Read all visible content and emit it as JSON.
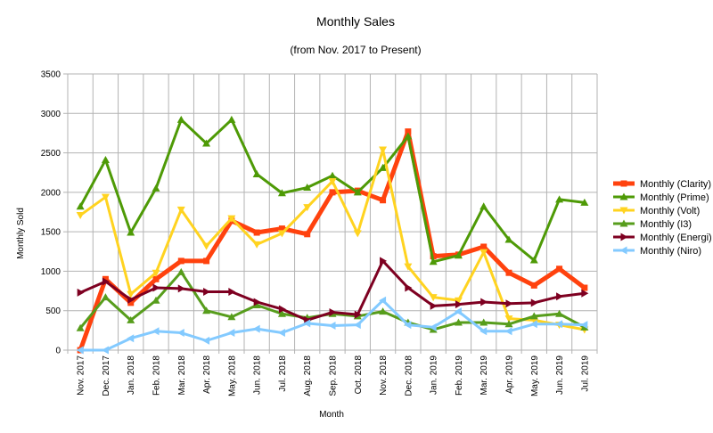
{
  "chart_data": {
    "type": "line",
    "title": "Monthly Sales",
    "subtitle": "(from Nov. 2017 to Present)",
    "xlabel": "Month",
    "ylabel": "Monthly Sold",
    "ylim": [
      0,
      3500
    ],
    "yticks": [
      0,
      500,
      1000,
      1500,
      2000,
      2500,
      3000,
      3500
    ],
    "grid": "horizontal",
    "legend_position": "right",
    "categories": [
      "Nov. 2017",
      "Dec. 2017",
      "Jan. 2018",
      "Feb. 2018",
      "Mar. 2018",
      "Apr. 2018",
      "May. 2018",
      "Jun. 2018",
      "Jul. 2018",
      "Aug. 2018",
      "Sep. 2018",
      "Oct. 2018",
      "Nov. 2018",
      "Dec. 2018",
      "Jan. 2019",
      "Feb. 2019",
      "Mar. 2019",
      "Apr. 2019",
      "May. 2019",
      "Jun. 2019",
      "Jul. 2019"
    ],
    "series": [
      {
        "name": "Monthly (Clarity)",
        "color": "#ff420e",
        "marker": "square",
        "width": "thick",
        "values": [
          0,
          900,
          600,
          900,
          1130,
          1130,
          1640,
          1490,
          1540,
          1470,
          2000,
          2020,
          1900,
          2770,
          1190,
          1210,
          1310,
          980,
          820,
          1030,
          790
        ]
      },
      {
        "name": "Monthly (Prime)",
        "color": "#4e9a06",
        "marker": "triangle",
        "width": "normal",
        "values": [
          1820,
          2410,
          1490,
          2050,
          2920,
          2620,
          2920,
          2230,
          1990,
          2060,
          2210,
          2000,
          2310,
          2710,
          1120,
          1200,
          1820,
          1400,
          1140,
          1910,
          1870
        ]
      },
      {
        "name": "Monthly (Volt)",
        "color": "#ffd320",
        "marker": "triangle-down",
        "width": "normal",
        "values": [
          1710,
          1940,
          710,
          980,
          1780,
          1320,
          1670,
          1340,
          1480,
          1810,
          2140,
          1480,
          2540,
          1060,
          670,
          630,
          1240,
          400,
          380,
          320,
          260
        ]
      },
      {
        "name": "Monthly (I3)",
        "color": "#579d1c",
        "marker": "triangle",
        "width": "normal",
        "values": [
          280,
          670,
          380,
          630,
          990,
          500,
          420,
          570,
          460,
          410,
          460,
          430,
          490,
          350,
          260,
          350,
          350,
          330,
          430,
          460,
          290
        ]
      },
      {
        "name": "Monthly (Energi)",
        "color": "#7e0021",
        "marker": "triangle-right",
        "width": "normal",
        "values": [
          730,
          870,
          640,
          790,
          780,
          740,
          740,
          610,
          520,
          380,
          480,
          450,
          1130,
          790,
          560,
          580,
          610,
          590,
          600,
          680,
          720
        ]
      },
      {
        "name": "Monthly (Niro)",
        "color": "#83caff",
        "marker": "triangle-left",
        "width": "normal",
        "values": [
          0,
          0,
          150,
          240,
          220,
          120,
          220,
          270,
          220,
          340,
          310,
          320,
          630,
          320,
          290,
          490,
          240,
          240,
          330,
          330,
          320
        ]
      }
    ]
  }
}
